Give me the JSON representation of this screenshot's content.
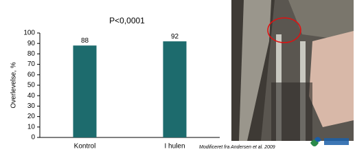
{
  "chart_data": {
    "type": "bar",
    "title": "P<0,0001",
    "y_label": "Overlevelse, %",
    "categories": [
      "Kontrol",
      "I hulen"
    ],
    "values": [
      88,
      92
    ],
    "color": "#1d6b6d",
    "ylim": [
      0,
      100
    ],
    "yticks": [
      0,
      10,
      20,
      30,
      40,
      50,
      60,
      70,
      80,
      90,
      100
    ],
    "grid": false
  },
  "caption": "Modificeret fra Andersen et al. 2009"
}
